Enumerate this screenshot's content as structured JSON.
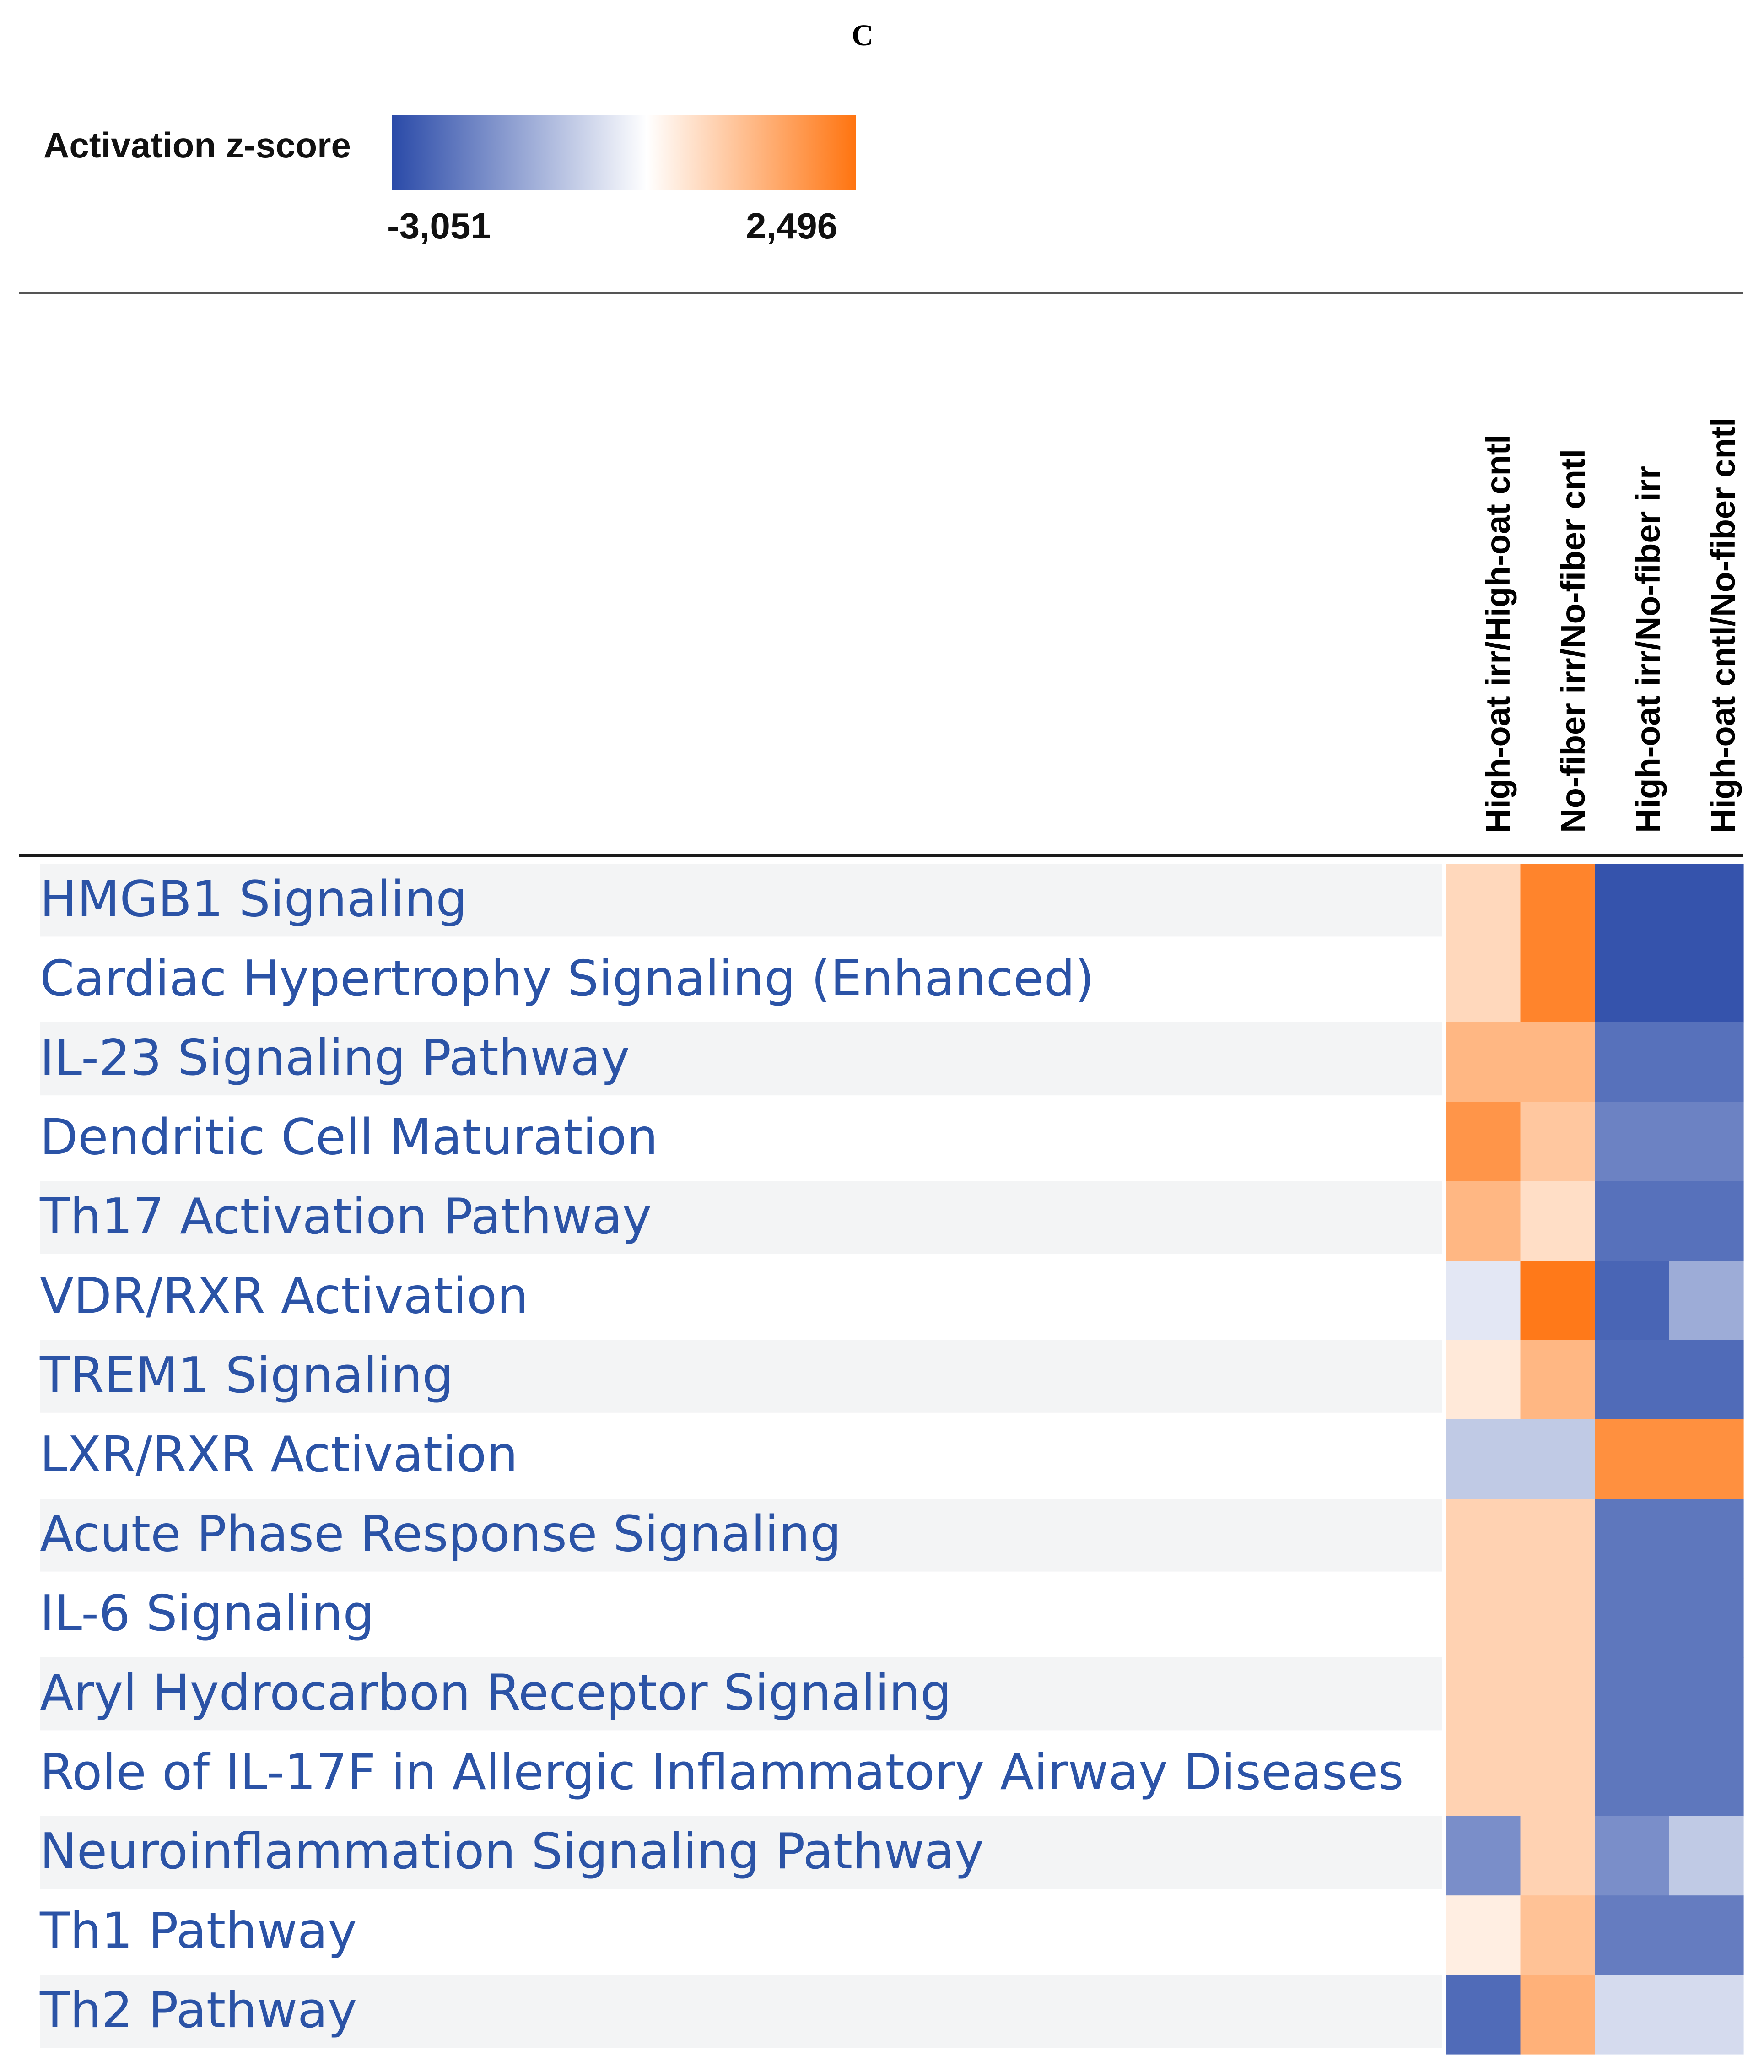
{
  "panel_label": "C",
  "legend": {
    "title": "Activation z-score",
    "min_label": "-3,051",
    "max_label": "2,496",
    "min_value": -3.051,
    "max_value": 2.496,
    "colors": {
      "negative": "#2a4aa8",
      "neutral": "#ffffff",
      "positive": "#ff7410"
    }
  },
  "chart_data": {
    "type": "heatmap",
    "title": "Activation z-score",
    "columns": [
      "High-oat irr/High-oat cntl",
      "No-fiber irr/No-fiber cntl",
      "High-oat irr/No-fiber irr",
      "High-oat cntl/No-fiber cntl"
    ],
    "rows": [
      "HMGB1 Signaling",
      "Cardiac Hypertrophy Signaling (Enhanced)",
      "IL-23 Signaling Pathway",
      "Dendritic Cell Maturation",
      "Th17 Activation Pathway",
      "VDR/RXR Activation",
      "TREM1 Signaling",
      "LXR/RXR Activation",
      "Acute Phase Response Signaling",
      "IL-6 Signaling",
      "Aryl Hydrocarbon Receptor Signaling",
      "Role of IL-17F in Allergic Inflammatory Airway Diseases",
      "Neuroinflammation Signaling Pathway",
      "Th1 Pathway",
      "Th2 Pathway"
    ],
    "values": [
      [
        0.7,
        2.2,
        -2.9,
        -2.9
      ],
      [
        0.7,
        2.2,
        -2.9,
        -2.9
      ],
      [
        1.3,
        1.3,
        -2.4,
        -2.4
      ],
      [
        1.9,
        1.0,
        -2.1,
        -2.1
      ],
      [
        1.3,
        0.6,
        -2.4,
        -2.4
      ],
      [
        -0.4,
        2.4,
        -2.6,
        -1.4
      ],
      [
        0.4,
        1.3,
        -2.5,
        -2.5
      ],
      [
        -0.9,
        -0.9,
        2.0,
        2.0
      ],
      [
        0.8,
        0.8,
        -2.3,
        -2.3
      ],
      [
        0.8,
        0.8,
        -2.3,
        -2.3
      ],
      [
        0.8,
        0.8,
        -2.3,
        -2.3
      ],
      [
        0.8,
        0.8,
        -2.3,
        -2.3
      ],
      [
        -1.9,
        0.8,
        -1.9,
        -0.9
      ],
      [
        0.3,
        1.1,
        -2.2,
        -2.2
      ],
      [
        -2.5,
        1.4,
        -0.6,
        -0.6
      ]
    ],
    "value_range": [
      -3.051,
      2.496
    ]
  }
}
